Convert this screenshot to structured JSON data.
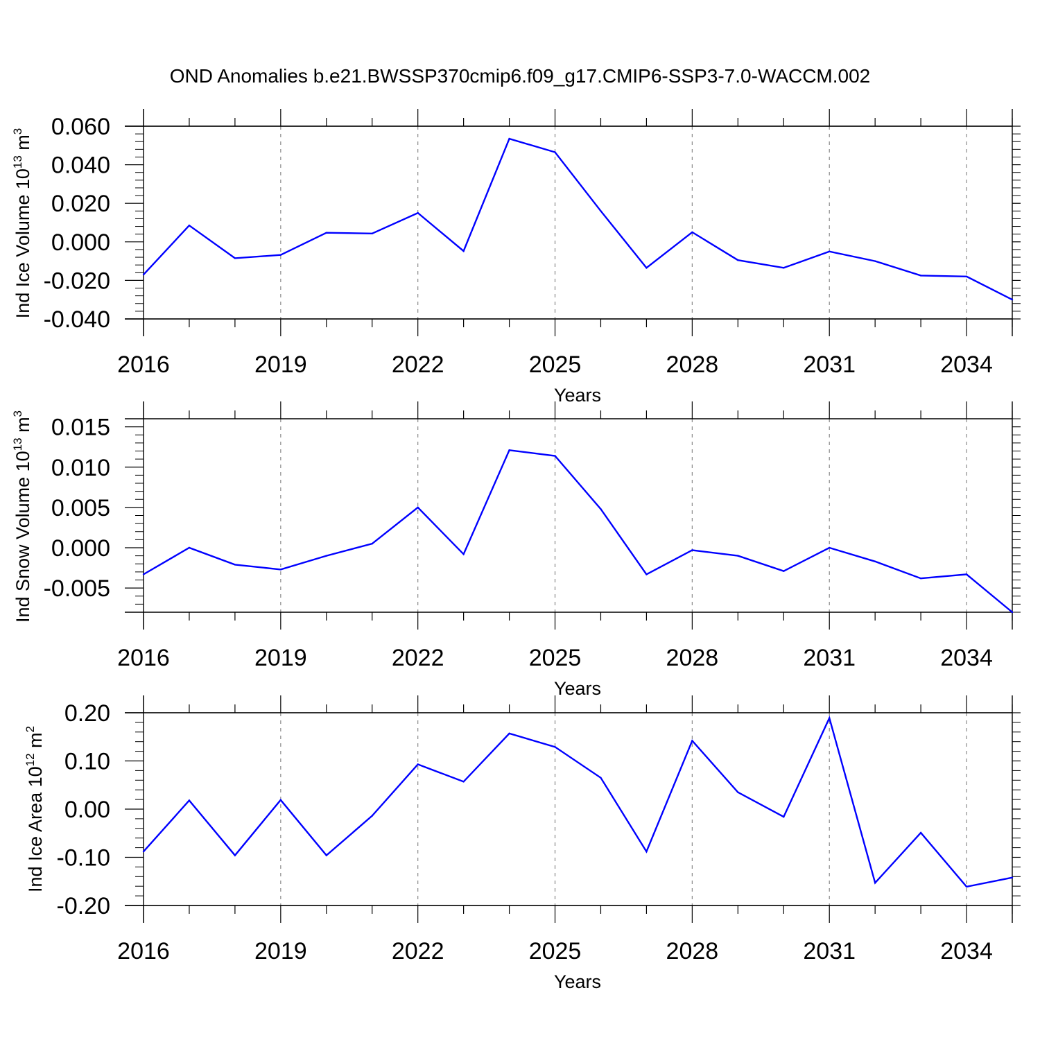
{
  "title": "OND Anomalies b.e21.BWSSP370cmip6.f09_g17.CMIP6-SSP3-7.0-WACCM.002",
  "colors": {
    "line": "#0000ff",
    "axis": "#000000",
    "grid": "#888888"
  },
  "chart_data": [
    {
      "type": "line",
      "title": "",
      "xlabel": "Years",
      "ylabel": {
        "main": "Ind Ice Volume 10",
        "exp": "13",
        "unit": " m",
        "unit_exp": "3"
      },
      "x": [
        2016,
        2017,
        2018,
        2019,
        2020,
        2021,
        2022,
        2023,
        2024,
        2025,
        2026,
        2027,
        2028,
        2029,
        2030,
        2031,
        2032,
        2033,
        2034,
        2035
      ],
      "values": [
        -0.017,
        0.0085,
        -0.0085,
        -0.0068,
        0.0047,
        0.0043,
        0.015,
        -0.0048,
        0.0535,
        0.0465,
        0.016,
        -0.0135,
        0.005,
        -0.0095,
        -0.0135,
        -0.005,
        -0.01,
        -0.0175,
        -0.018,
        -0.03
      ],
      "xlim": [
        2016,
        2035
      ],
      "ylim": [
        -0.04,
        0.06
      ],
      "xticks": [
        2016,
        2019,
        2022,
        2025,
        2028,
        2031,
        2034
      ],
      "xtick_labels": [
        "2016",
        "2019",
        "2022",
        "2025",
        "2028",
        "2031",
        "2034"
      ],
      "yticks": [
        -0.04,
        -0.02,
        0.0,
        0.02,
        0.04,
        0.06
      ],
      "ytick_labels": [
        "-0.040",
        "-0.020",
        "0.000",
        "0.020",
        "0.040",
        "0.060"
      ],
      "grid": "vertical dashed at major x ticks"
    },
    {
      "type": "line",
      "title": "",
      "xlabel": "Years",
      "ylabel": {
        "main": "Ind Snow Volume 10",
        "exp": "13",
        "unit": " m",
        "unit_exp": "3"
      },
      "x": [
        2016,
        2017,
        2018,
        2019,
        2020,
        2021,
        2022,
        2023,
        2024,
        2025,
        2026,
        2027,
        2028,
        2029,
        2030,
        2031,
        2032,
        2033,
        2034,
        2035
      ],
      "values": [
        -0.0033,
        0.0,
        -0.0021,
        -0.0027,
        -0.001,
        0.0005,
        0.005,
        -0.0008,
        0.0121,
        0.0114,
        0.0048,
        -0.0033,
        -0.0003,
        -0.001,
        -0.0029,
        0.0,
        -0.0017,
        -0.0038,
        -0.0033,
        -0.008
      ],
      "xlim": [
        2016,
        2035
      ],
      "ylim": [
        -0.008,
        0.016
      ],
      "xticks": [
        2016,
        2019,
        2022,
        2025,
        2028,
        2031,
        2034
      ],
      "xtick_labels": [
        "2016",
        "2019",
        "2022",
        "2025",
        "2028",
        "2031",
        "2034"
      ],
      "yticks": [
        -0.005,
        0.0,
        0.005,
        0.01,
        0.015
      ],
      "ytick_labels": [
        "-0.005",
        "0.000",
        "0.005",
        "0.010",
        "0.015"
      ],
      "grid": "vertical dashed at major x ticks"
    },
    {
      "type": "line",
      "title": "",
      "xlabel": "Years",
      "ylabel": {
        "main": "Ind Ice Area 10",
        "exp": "12",
        "unit": " m",
        "unit_exp": "2"
      },
      "x": [
        2016,
        2017,
        2018,
        2019,
        2020,
        2021,
        2022,
        2023,
        2024,
        2025,
        2026,
        2027,
        2028,
        2029,
        2030,
        2031,
        2032,
        2033,
        2034,
        2035
      ],
      "values": [
        -0.088,
        0.018,
        -0.096,
        0.019,
        -0.096,
        -0.014,
        0.093,
        0.057,
        0.157,
        0.129,
        0.065,
        -0.088,
        0.142,
        0.035,
        -0.016,
        0.189,
        -0.153,
        -0.049,
        -0.161,
        -0.142
      ],
      "xlim": [
        2016,
        2035
      ],
      "ylim": [
        -0.2,
        0.2
      ],
      "xticks": [
        2016,
        2019,
        2022,
        2025,
        2028,
        2031,
        2034
      ],
      "xtick_labels": [
        "2016",
        "2019",
        "2022",
        "2025",
        "2028",
        "2031",
        "2034"
      ],
      "yticks": [
        -0.2,
        -0.1,
        0.0,
        0.1,
        0.2
      ],
      "ytick_labels": [
        "-0.20",
        "-0.10",
        "0.00",
        "0.10",
        "0.20"
      ],
      "grid": "vertical dashed at major x ticks"
    }
  ]
}
